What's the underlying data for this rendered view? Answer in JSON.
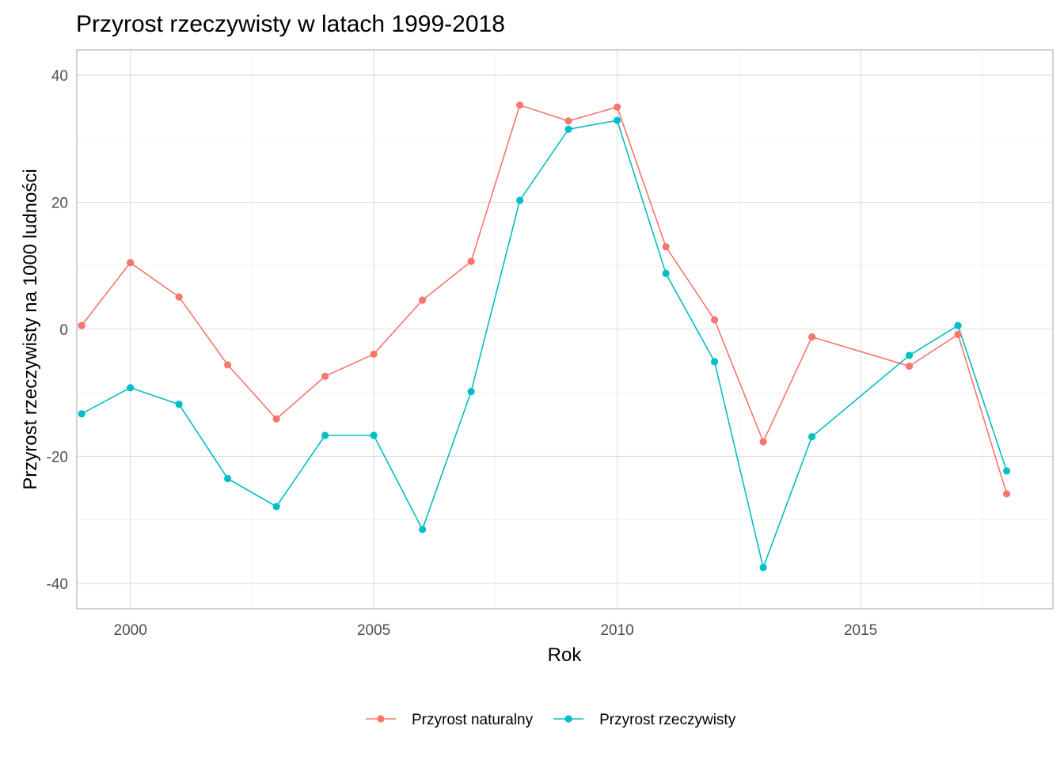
{
  "chart_data": {
    "type": "line",
    "title": "Przyrost rzeczywisty w latach 1999-2018",
    "xlabel": "Rok",
    "ylabel": "Przyrost rzeczywisty na 1000 ludności",
    "xlim": [
      1998.9,
      2018.95
    ],
    "ylim": [
      -44,
      44
    ],
    "x_ticks": [
      2000,
      2005,
      2010,
      2015
    ],
    "x_tick_labels": [
      "2000",
      "2005",
      "2010",
      "2015"
    ],
    "y_ticks": [
      -40,
      -20,
      0,
      20,
      40
    ],
    "y_tick_labels": [
      "-40",
      "-20",
      "0",
      "20",
      "40"
    ],
    "grid": true,
    "legend_position": "bottom",
    "series": [
      {
        "name": "Przyrost naturalny",
        "color": "#F8766D",
        "x": [
          1999,
          2000,
          2001,
          2002,
          2003,
          2004,
          2005,
          2006,
          2007,
          2008,
          2009,
          2010,
          2011,
          2012,
          2013,
          2014,
          2016,
          2017,
          2018
        ],
        "values": [
          0.6,
          10.5,
          5.1,
          -5.6,
          -14.1,
          -7.4,
          -3.9,
          4.6,
          10.7,
          35.3,
          32.8,
          35.0,
          13.0,
          1.5,
          -17.7,
          -1.2,
          -5.8,
          -0.8,
          -25.9
        ]
      },
      {
        "name": "Przyrost rzeczywisty",
        "color": "#00BFC4",
        "x": [
          1999,
          2000,
          2001,
          2002,
          2003,
          2004,
          2005,
          2006,
          2007,
          2008,
          2009,
          2010,
          2011,
          2012,
          2013,
          2014,
          2016,
          2017,
          2018
        ],
        "values": [
          -13.3,
          -9.2,
          -11.8,
          -23.5,
          -27.9,
          -16.7,
          -16.7,
          -31.5,
          -9.8,
          20.3,
          31.5,
          32.9,
          8.8,
          -5.1,
          -37.5,
          -16.9,
          -4.1,
          0.6,
          -22.3
        ]
      }
    ]
  }
}
